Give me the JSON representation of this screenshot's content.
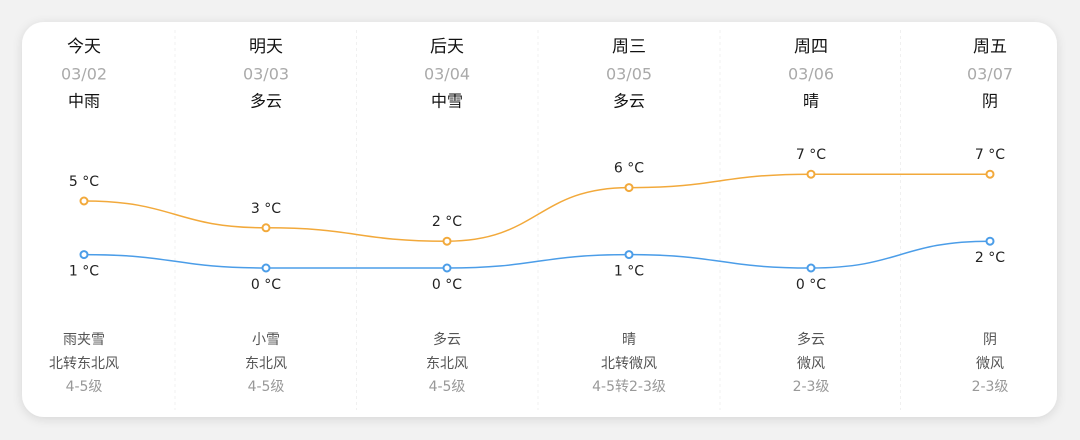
{
  "chart_data": {
    "type": "line",
    "categories": [
      "今天",
      "明天",
      "后天",
      "周三",
      "周四",
      "周五"
    ],
    "dates": [
      "03/02",
      "03/03",
      "03/04",
      "03/05",
      "03/06",
      "03/07"
    ],
    "day_weather": [
      "中雨",
      "多云",
      "中雪",
      "多云",
      "晴",
      "阴"
    ],
    "series": [
      {
        "color": "#f2a93b",
        "values": [
          5,
          3,
          2,
          6,
          7,
          7
        ],
        "value_labels": [
          "5 °C",
          "3 °C",
          "2 °C",
          "6 °C",
          "7 °C",
          "7 °C"
        ]
      },
      {
        "color": "#4b9de8",
        "values": [
          1,
          0,
          0,
          1,
          0,
          2
        ],
        "value_labels": [
          "1 °C",
          "0 °C",
          "0 °C",
          "1 °C",
          "0 °C",
          "2 °C"
        ]
      }
    ],
    "night_weather": [
      "雨夹雪",
      "小雪",
      "多云",
      "晴",
      "多云",
      "阴"
    ],
    "wind_direction": [
      "北转东北风",
      "东北风",
      "东北风",
      "北转微风",
      "微风",
      "微风"
    ],
    "wind_level": [
      "4-5级",
      "4-5级",
      "4-5级",
      "4-5转2-3级",
      "2-3级",
      "2-3级"
    ]
  }
}
